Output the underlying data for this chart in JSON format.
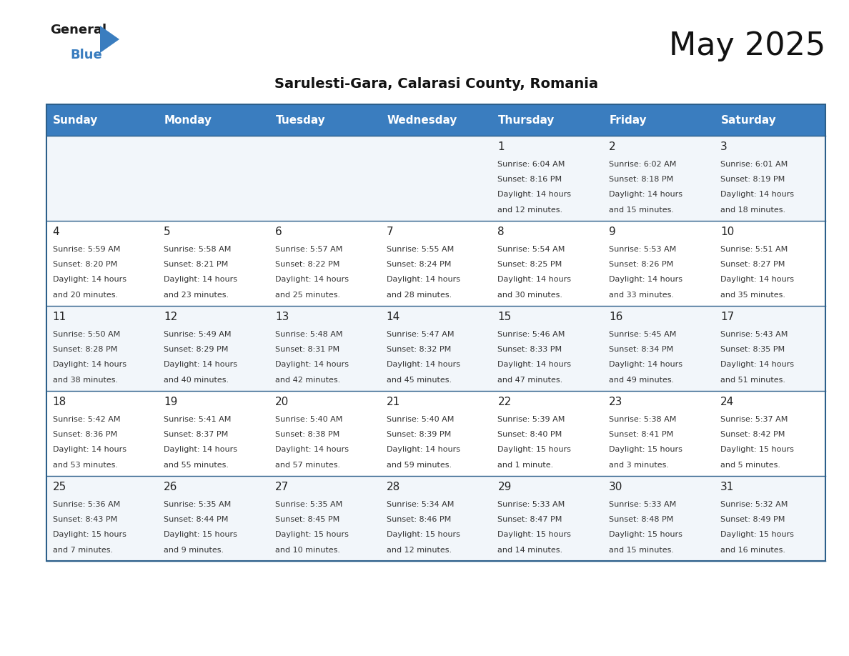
{
  "title": "May 2025",
  "subtitle": "Sarulesti-Gara, Calarasi County, Romania",
  "header_bg_color": "#3a7dbf",
  "header_text_color": "#ffffff",
  "cell_bg_odd": "#f2f6fa",
  "cell_bg_even": "#ffffff",
  "day_number_color": "#222222",
  "cell_text_color": "#333333",
  "border_color": "#2c5f8a",
  "days_of_week": [
    "Sunday",
    "Monday",
    "Tuesday",
    "Wednesday",
    "Thursday",
    "Friday",
    "Saturday"
  ],
  "weeks": [
    [
      {
        "day": null,
        "sunrise": null,
        "sunset": null,
        "daylight_line1": null,
        "daylight_line2": null
      },
      {
        "day": null,
        "sunrise": null,
        "sunset": null,
        "daylight_line1": null,
        "daylight_line2": null
      },
      {
        "day": null,
        "sunrise": null,
        "sunset": null,
        "daylight_line1": null,
        "daylight_line2": null
      },
      {
        "day": null,
        "sunrise": null,
        "sunset": null,
        "daylight_line1": null,
        "daylight_line2": null
      },
      {
        "day": "1",
        "sunrise": "Sunrise: 6:04 AM",
        "sunset": "Sunset: 8:16 PM",
        "daylight_line1": "Daylight: 14 hours",
        "daylight_line2": "and 12 minutes."
      },
      {
        "day": "2",
        "sunrise": "Sunrise: 6:02 AM",
        "sunset": "Sunset: 8:18 PM",
        "daylight_line1": "Daylight: 14 hours",
        "daylight_line2": "and 15 minutes."
      },
      {
        "day": "3",
        "sunrise": "Sunrise: 6:01 AM",
        "sunset": "Sunset: 8:19 PM",
        "daylight_line1": "Daylight: 14 hours",
        "daylight_line2": "and 18 minutes."
      }
    ],
    [
      {
        "day": "4",
        "sunrise": "Sunrise: 5:59 AM",
        "sunset": "Sunset: 8:20 PM",
        "daylight_line1": "Daylight: 14 hours",
        "daylight_line2": "and 20 minutes."
      },
      {
        "day": "5",
        "sunrise": "Sunrise: 5:58 AM",
        "sunset": "Sunset: 8:21 PM",
        "daylight_line1": "Daylight: 14 hours",
        "daylight_line2": "and 23 minutes."
      },
      {
        "day": "6",
        "sunrise": "Sunrise: 5:57 AM",
        "sunset": "Sunset: 8:22 PM",
        "daylight_line1": "Daylight: 14 hours",
        "daylight_line2": "and 25 minutes."
      },
      {
        "day": "7",
        "sunrise": "Sunrise: 5:55 AM",
        "sunset": "Sunset: 8:24 PM",
        "daylight_line1": "Daylight: 14 hours",
        "daylight_line2": "and 28 minutes."
      },
      {
        "day": "8",
        "sunrise": "Sunrise: 5:54 AM",
        "sunset": "Sunset: 8:25 PM",
        "daylight_line1": "Daylight: 14 hours",
        "daylight_line2": "and 30 minutes."
      },
      {
        "day": "9",
        "sunrise": "Sunrise: 5:53 AM",
        "sunset": "Sunset: 8:26 PM",
        "daylight_line1": "Daylight: 14 hours",
        "daylight_line2": "and 33 minutes."
      },
      {
        "day": "10",
        "sunrise": "Sunrise: 5:51 AM",
        "sunset": "Sunset: 8:27 PM",
        "daylight_line1": "Daylight: 14 hours",
        "daylight_line2": "and 35 minutes."
      }
    ],
    [
      {
        "day": "11",
        "sunrise": "Sunrise: 5:50 AM",
        "sunset": "Sunset: 8:28 PM",
        "daylight_line1": "Daylight: 14 hours",
        "daylight_line2": "and 38 minutes."
      },
      {
        "day": "12",
        "sunrise": "Sunrise: 5:49 AM",
        "sunset": "Sunset: 8:29 PM",
        "daylight_line1": "Daylight: 14 hours",
        "daylight_line2": "and 40 minutes."
      },
      {
        "day": "13",
        "sunrise": "Sunrise: 5:48 AM",
        "sunset": "Sunset: 8:31 PM",
        "daylight_line1": "Daylight: 14 hours",
        "daylight_line2": "and 42 minutes."
      },
      {
        "day": "14",
        "sunrise": "Sunrise: 5:47 AM",
        "sunset": "Sunset: 8:32 PM",
        "daylight_line1": "Daylight: 14 hours",
        "daylight_line2": "and 45 minutes."
      },
      {
        "day": "15",
        "sunrise": "Sunrise: 5:46 AM",
        "sunset": "Sunset: 8:33 PM",
        "daylight_line1": "Daylight: 14 hours",
        "daylight_line2": "and 47 minutes."
      },
      {
        "day": "16",
        "sunrise": "Sunrise: 5:45 AM",
        "sunset": "Sunset: 8:34 PM",
        "daylight_line1": "Daylight: 14 hours",
        "daylight_line2": "and 49 minutes."
      },
      {
        "day": "17",
        "sunrise": "Sunrise: 5:43 AM",
        "sunset": "Sunset: 8:35 PM",
        "daylight_line1": "Daylight: 14 hours",
        "daylight_line2": "and 51 minutes."
      }
    ],
    [
      {
        "day": "18",
        "sunrise": "Sunrise: 5:42 AM",
        "sunset": "Sunset: 8:36 PM",
        "daylight_line1": "Daylight: 14 hours",
        "daylight_line2": "and 53 minutes."
      },
      {
        "day": "19",
        "sunrise": "Sunrise: 5:41 AM",
        "sunset": "Sunset: 8:37 PM",
        "daylight_line1": "Daylight: 14 hours",
        "daylight_line2": "and 55 minutes."
      },
      {
        "day": "20",
        "sunrise": "Sunrise: 5:40 AM",
        "sunset": "Sunset: 8:38 PM",
        "daylight_line1": "Daylight: 14 hours",
        "daylight_line2": "and 57 minutes."
      },
      {
        "day": "21",
        "sunrise": "Sunrise: 5:40 AM",
        "sunset": "Sunset: 8:39 PM",
        "daylight_line1": "Daylight: 14 hours",
        "daylight_line2": "and 59 minutes."
      },
      {
        "day": "22",
        "sunrise": "Sunrise: 5:39 AM",
        "sunset": "Sunset: 8:40 PM",
        "daylight_line1": "Daylight: 15 hours",
        "daylight_line2": "and 1 minute."
      },
      {
        "day": "23",
        "sunrise": "Sunrise: 5:38 AM",
        "sunset": "Sunset: 8:41 PM",
        "daylight_line1": "Daylight: 15 hours",
        "daylight_line2": "and 3 minutes."
      },
      {
        "day": "24",
        "sunrise": "Sunrise: 5:37 AM",
        "sunset": "Sunset: 8:42 PM",
        "daylight_line1": "Daylight: 15 hours",
        "daylight_line2": "and 5 minutes."
      }
    ],
    [
      {
        "day": "25",
        "sunrise": "Sunrise: 5:36 AM",
        "sunset": "Sunset: 8:43 PM",
        "daylight_line1": "Daylight: 15 hours",
        "daylight_line2": "and 7 minutes."
      },
      {
        "day": "26",
        "sunrise": "Sunrise: 5:35 AM",
        "sunset": "Sunset: 8:44 PM",
        "daylight_line1": "Daylight: 15 hours",
        "daylight_line2": "and 9 minutes."
      },
      {
        "day": "27",
        "sunrise": "Sunrise: 5:35 AM",
        "sunset": "Sunset: 8:45 PM",
        "daylight_line1": "Daylight: 15 hours",
        "daylight_line2": "and 10 minutes."
      },
      {
        "day": "28",
        "sunrise": "Sunrise: 5:34 AM",
        "sunset": "Sunset: 8:46 PM",
        "daylight_line1": "Daylight: 15 hours",
        "daylight_line2": "and 12 minutes."
      },
      {
        "day": "29",
        "sunrise": "Sunrise: 5:33 AM",
        "sunset": "Sunset: 8:47 PM",
        "daylight_line1": "Daylight: 15 hours",
        "daylight_line2": "and 14 minutes."
      },
      {
        "day": "30",
        "sunrise": "Sunrise: 5:33 AM",
        "sunset": "Sunset: 8:48 PM",
        "daylight_line1": "Daylight: 15 hours",
        "daylight_line2": "and 15 minutes."
      },
      {
        "day": "31",
        "sunrise": "Sunrise: 5:32 AM",
        "sunset": "Sunset: 8:49 PM",
        "daylight_line1": "Daylight: 15 hours",
        "daylight_line2": "and 16 minutes."
      }
    ]
  ],
  "logo_text_general": "General",
  "logo_text_blue": "Blue",
  "logo_color_general": "#1a1a1a",
  "logo_color_blue": "#3a7dbf",
  "logo_triangle_color": "#3a7dbf",
  "background_color": "#ffffff",
  "title_fontsize": 32,
  "subtitle_fontsize": 14,
  "header_fontsize": 11,
  "day_num_fontsize": 11,
  "cell_text_fontsize": 8
}
